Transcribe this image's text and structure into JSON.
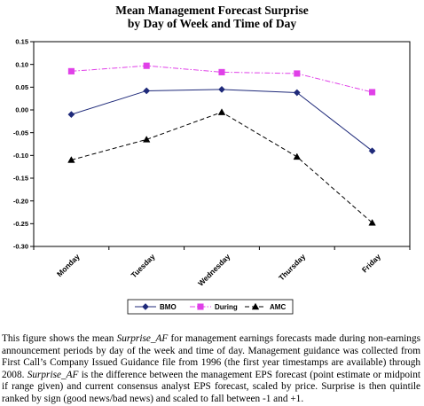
{
  "chart_data": {
    "type": "line",
    "title_line1": "Mean Management Forecast Surprise",
    "title_line2": "by Day of Week and Time of Day",
    "categories": [
      "Monday",
      "Tuesday",
      "Wednesday",
      "Thursday",
      "Friday"
    ],
    "ylim": [
      -0.3,
      0.15
    ],
    "yticks": [
      0.15,
      0.1,
      0.05,
      0.0,
      -0.05,
      -0.1,
      -0.15,
      -0.2,
      -0.25,
      -0.3
    ],
    "ytick_labels": [
      "0.15",
      "0.10",
      "0.05",
      "0.00",
      "-0.05",
      "-0.10",
      "-0.15",
      "-0.20",
      "-0.25",
      "-0.30"
    ],
    "grid": false,
    "legend_position": "bottom",
    "series": [
      {
        "name": "BMO",
        "values": [
          -0.01,
          0.042,
          0.045,
          0.038,
          -0.09
        ],
        "color": "#1f2a7a",
        "marker": "diamond",
        "dash": "solid"
      },
      {
        "name": "During",
        "values": [
          0.085,
          0.097,
          0.083,
          0.08,
          0.039
        ],
        "color": "#e040e8",
        "marker": "square",
        "dash": "dashdot"
      },
      {
        "name": "AMC",
        "values": [
          -0.11,
          -0.065,
          -0.005,
          -0.103,
          -0.248
        ],
        "color": "#000000",
        "marker": "triangle",
        "dash": "dashed"
      }
    ]
  },
  "caption": {
    "parts": [
      {
        "text": "This figure shows the mean ",
        "italic": false
      },
      {
        "text": "Surprise_AF",
        "italic": true
      },
      {
        "text": " for management earnings forecasts made during non-earnings announcement periods by day of the week and time of day.  Management guidance was collected from First Call’s Company Issued Guidance file from 1996 (the first year timestamps are available) through 2008.  ",
        "italic": false
      },
      {
        "text": "Surprise_AF",
        "italic": true
      },
      {
        "text": " is the difference between the management EPS forecast (point estimate or midpoint if range given) and current consensus analyst EPS forecast, scaled by price. Surprise is then quintile ranked by sign (good news/bad news) and scaled to fall between -1 and +1.",
        "italic": false
      }
    ]
  }
}
